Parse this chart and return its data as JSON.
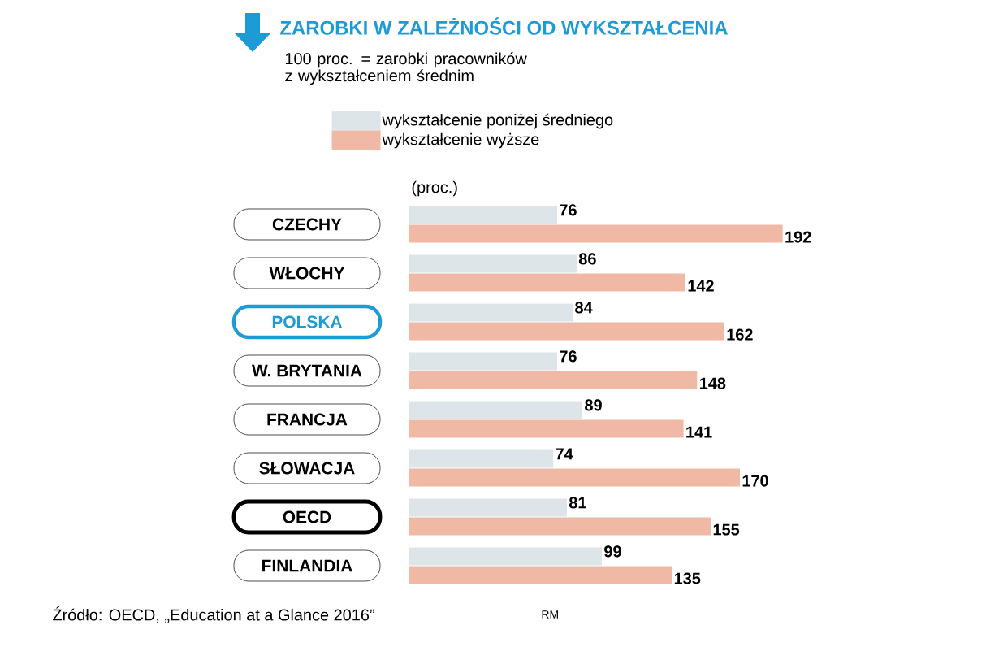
{
  "chart_data": {
    "type": "bar",
    "orientation": "horizontal",
    "title": "ZAROBKI W ZALEŻNOŚCI OD WYKSZTAŁCENIA",
    "subtitle": "100 proc. = zarobki pracowników z wykształceniem średnim",
    "xlabel": "(proc.)",
    "categories": [
      "CZECHY",
      "WŁOCHY",
      "POLSKA",
      "W. BRYTANIA",
      "FRANCJA",
      "SŁOWACJA",
      "OECD",
      "FINLANDIA"
    ],
    "series": [
      {
        "name": "wykształcenie poniżej średniego",
        "color": "#dde5e9",
        "values": [
          76,
          86,
          84,
          76,
          89,
          74,
          81,
          99
        ]
      },
      {
        "name": "wykształcenie wyższe",
        "color": "#f0b9a6",
        "values": [
          192,
          142,
          162,
          148,
          141,
          170,
          155,
          135
        ]
      }
    ],
    "data_labels": true,
    "legend": "top",
    "annotations": [
      "Źródło: OECD, „Education at a Glance 2016”",
      "RM"
    ]
  }
}
